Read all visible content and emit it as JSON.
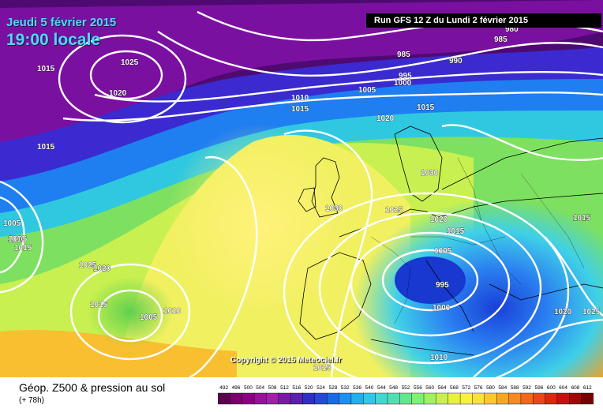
{
  "header": {
    "date_line": "Jeudi 5 février 2015",
    "time_line": "19:00 locale",
    "run_info": "Run GFS 12 Z du Lundi 2 février 2015"
  },
  "map": {
    "copyright": "Copyright © 2015 Meteociel.fr",
    "pressure_labels": [
      "980",
      "985",
      "985",
      "990",
      "995",
      "1000",
      "1005",
      "1010",
      "1015",
      "1015",
      "1020",
      "1025",
      "1015",
      "1020",
      "1015",
      "1010",
      "1005",
      "1020",
      "1030",
      "1030",
      "1025",
      "1020",
      "1015",
      "1005",
      "995",
      "1000",
      "1010",
      "1015",
      "1005",
      "1010",
      "1015",
      "1025",
      "1020",
      "1015",
      "1005",
      "1010",
      "1020",
      "1025",
      "1015",
      "1020",
      "1015"
    ],
    "colors": {
      "isobar": "#ffffff",
      "background_low": "#6a0a8e",
      "background_high": "#f5b800"
    }
  },
  "legend": {
    "title": "Géop. Z500 & pression au sol",
    "subtitle": "(+ 78h)",
    "scale_values": [
      "492",
      "496",
      "500",
      "504",
      "508",
      "512",
      "516",
      "520",
      "524",
      "528",
      "532",
      "536",
      "540",
      "544",
      "548",
      "552",
      "556",
      "560",
      "564",
      "568",
      "572",
      "576",
      "580",
      "584",
      "588",
      "592",
      "596",
      "600",
      "604",
      "608",
      "612"
    ],
    "scale_colors": [
      "#5a004f",
      "#7a006b",
      "#8b0080",
      "#9a1296",
      "#a520a8",
      "#7c1aa8",
      "#5a20b0",
      "#2f2fc8",
      "#2848d8",
      "#1a6ae8",
      "#1a90f2",
      "#20b0f0",
      "#30c8e8",
      "#40d8d0",
      "#50e0b0",
      "#60e890",
      "#80f070",
      "#a0f060",
      "#c8f050",
      "#e8f040",
      "#f8f040",
      "#f8e040",
      "#f8c830",
      "#f8a820",
      "#f88820",
      "#f06818",
      "#e84818",
      "#d82810",
      "#c81010",
      "#a00808",
      "#780000"
    ]
  }
}
